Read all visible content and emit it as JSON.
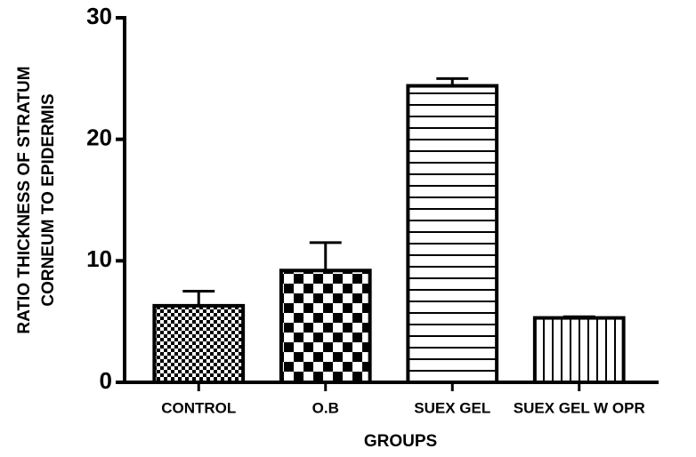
{
  "chart_data": {
    "type": "bar",
    "categories": [
      "CONTROL",
      "O.B",
      "SUEX GEL",
      "SUEX GEL W OPR"
    ],
    "values": [
      6.3,
      9.2,
      24.4,
      5.3
    ],
    "errors": [
      1.2,
      2.3,
      0.6,
      0.1
    ],
    "patterns": [
      "fine-check",
      "check",
      "hlines",
      "vlines"
    ],
    "color": "#000000",
    "ylim": [
      0,
      30
    ],
    "yticks": [
      0,
      10,
      20,
      30
    ],
    "xlabel": "GROUPS",
    "ylabel": [
      "RATIO THICKNESS OF STRATUM",
      "CORNEUM TO EPIDERMIS"
    ]
  }
}
